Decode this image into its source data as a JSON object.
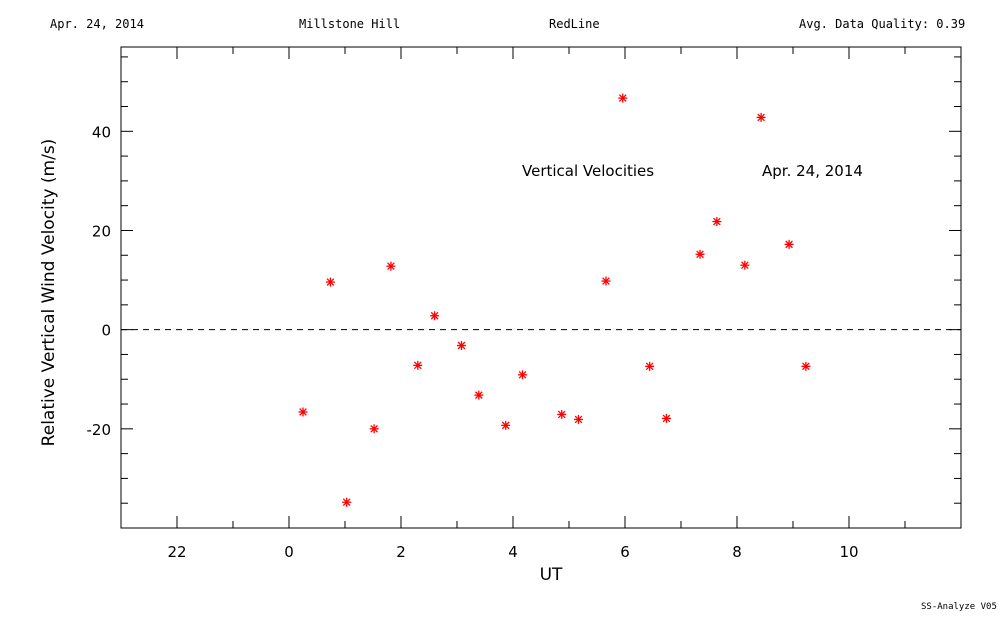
{
  "header": {
    "date": "Apr. 24, 2014",
    "site": "Millstone Hill",
    "line": "RedLine",
    "quality": "Avg. Data Quality: 0.39"
  },
  "footer": "SS-Analyze V05",
  "chart_data": {
    "type": "scatter",
    "xlabel": "UT",
    "ylabel": "Relative Vertical Wind Velocity (m/s)",
    "xlim": [
      -3,
      12
    ],
    "ylim": [
      -40,
      57
    ],
    "xticks": [
      22,
      0,
      2,
      4,
      6,
      8,
      10
    ],
    "yticks": [
      -20,
      0,
      20,
      40
    ],
    "marker": "asterisk",
    "color": "#ff0000",
    "zero_line": "dashed",
    "annotations": [
      "Vertical Velocities",
      "Apr. 24, 2014"
    ],
    "series": [
      {
        "x": [
          0.25,
          0.74,
          1.03,
          1.52,
          1.82,
          2.3,
          2.6,
          3.08,
          3.39,
          3.87,
          4.17,
          4.87,
          5.17,
          5.66,
          5.96,
          6.44,
          6.74,
          7.34,
          7.64,
          8.14,
          8.43,
          8.93,
          9.23
        ],
        "y": [
          -16.6,
          9.6,
          -34.8,
          -20.0,
          12.8,
          -7.2,
          2.8,
          -3.2,
          -13.2,
          -19.3,
          -9.1,
          -17.1,
          -18.1,
          9.8,
          46.7,
          -7.4,
          -17.9,
          15.2,
          21.8,
          13.0,
          42.8,
          17.2,
          -7.4
        ]
      }
    ]
  }
}
